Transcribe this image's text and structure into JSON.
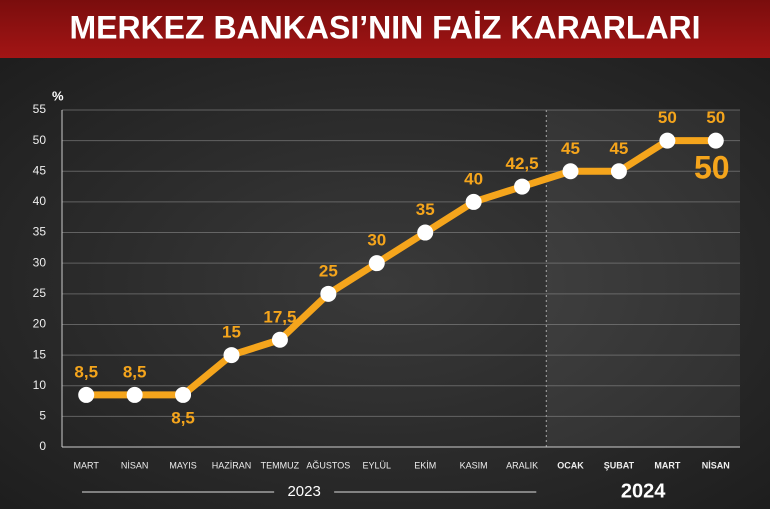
{
  "chart_data": {
    "type": "line",
    "title": "MERKEZ BANKASI’NIN FAİZ KARARLARI",
    "y_unit": "%",
    "annotation": "50",
    "color": "#f5a51c",
    "ylim": [
      0,
      55
    ],
    "yticks": [
      0,
      5,
      10,
      15,
      20,
      25,
      30,
      35,
      40,
      45,
      50,
      55
    ],
    "grid": true,
    "groups": [
      {
        "label": "2023",
        "categories": [
          "MART",
          "NİSAN",
          "MAYIS",
          "HAZİRAN",
          "TEMMUZ",
          "AĞUSTOS",
          "EYLÜL",
          "EKİM",
          "KASIM",
          "ARALIK"
        ],
        "values": [
          8.5,
          8.5,
          8.5,
          15,
          17.5,
          25,
          30,
          35,
          40,
          42.5
        ],
        "value_labels": [
          "8,5",
          "8,5",
          "8,5",
          "15",
          "17,5",
          "25",
          "30",
          "35",
          "40",
          "42,5"
        ]
      },
      {
        "label": "2024",
        "categories": [
          "OCAK",
          "ŞUBAT",
          "MART",
          "NİSAN"
        ],
        "values": [
          45,
          45,
          50,
          50
        ],
        "value_labels": [
          "45",
          "45",
          "50",
          "50"
        ]
      }
    ]
  }
}
